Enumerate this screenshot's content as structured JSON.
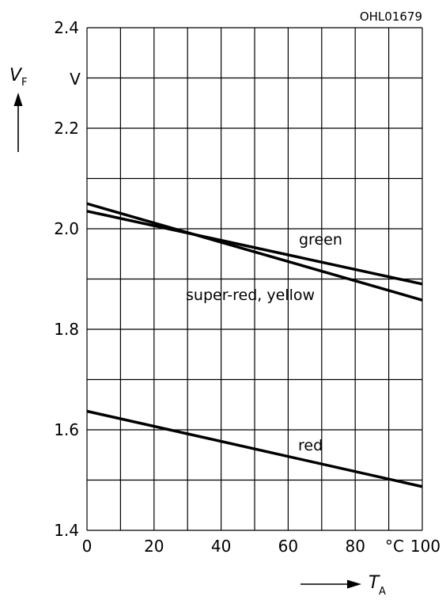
{
  "chart_data": {
    "type": "line",
    "figure_id": "OHL01679",
    "y_axis": {
      "symbol": "V",
      "subscript": "F",
      "unit": "V",
      "ylim": [
        1.4,
        2.4
      ],
      "ticks": [
        "1.4",
        "1.6",
        "1.8",
        "2.0",
        "2.2",
        "2.4"
      ],
      "major_step": 0.2,
      "minor_step": 0.1
    },
    "x_axis": {
      "symbol": "T",
      "subscript": "A",
      "unit": "°C",
      "xlim": [
        0,
        100
      ],
      "ticks": [
        "0",
        "20",
        "40",
        "60",
        "80",
        "100"
      ],
      "grid_step": 10
    },
    "grid": true,
    "series": [
      {
        "name": "green",
        "x": [
          0,
          100
        ],
        "y": [
          2.035,
          1.89
        ]
      },
      {
        "name": "super-red, yellow",
        "x": [
          0,
          100
        ],
        "y": [
          2.05,
          1.858
        ]
      },
      {
        "name": "red",
        "x": [
          0,
          100
        ],
        "y": [
          1.637,
          1.487
        ]
      }
    ]
  }
}
